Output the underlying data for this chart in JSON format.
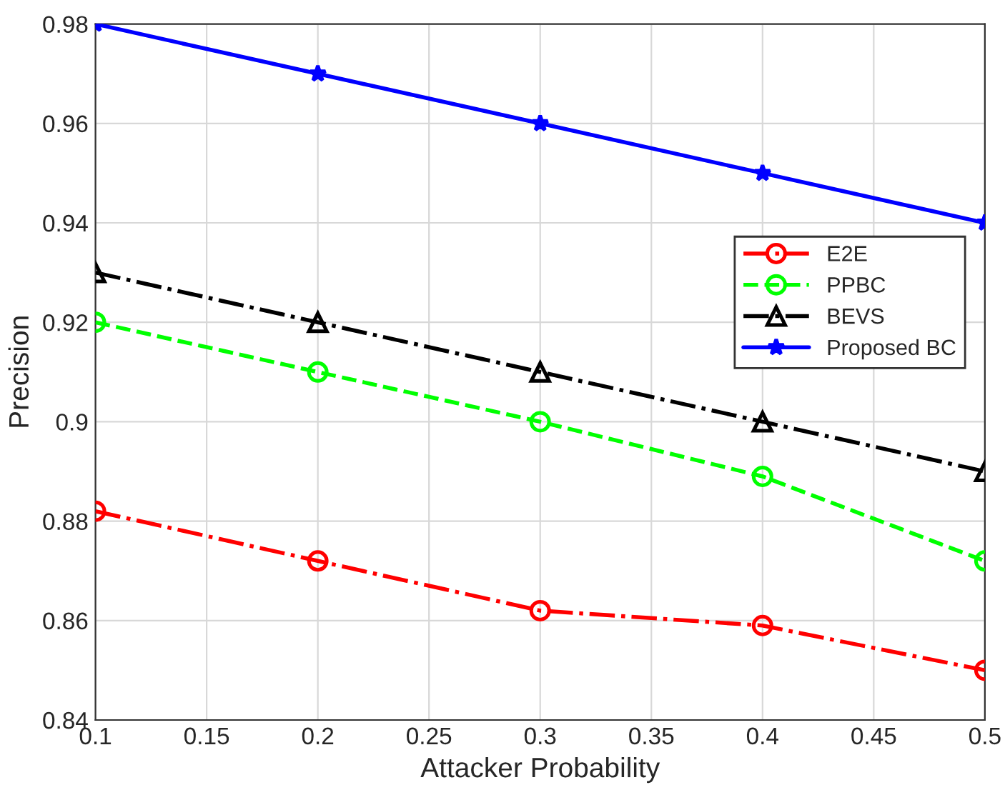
{
  "chart_data": {
    "type": "line",
    "xlabel": "Attacker Probability",
    "ylabel": "Precision",
    "x": [
      0.1,
      0.2,
      0.3,
      0.4,
      0.5
    ],
    "series": [
      {
        "name": "E2E",
        "color": "#ff0000",
        "values": [
          0.882,
          0.872,
          0.862,
          0.859,
          0.85
        ],
        "marker": "circle",
        "line_style": "dashdot"
      },
      {
        "name": "PPBC",
        "color": "#00ff00",
        "values": [
          0.92,
          0.91,
          0.9,
          0.889,
          0.872
        ],
        "marker": "circle",
        "line_style": "dashed"
      },
      {
        "name": "BEVS",
        "color": "#000000",
        "values": [
          0.93,
          0.92,
          0.91,
          0.9,
          0.89
        ],
        "marker": "triangle",
        "line_style": "dashdot"
      },
      {
        "name": "Proposed BC",
        "color": "#0000ff",
        "values": [
          0.98,
          0.97,
          0.96,
          0.95,
          0.94
        ],
        "marker": "star",
        "line_style": "solid"
      }
    ],
    "xlim": [
      0.1,
      0.5
    ],
    "xticks": [
      0.1,
      0.15,
      0.2,
      0.25,
      0.3,
      0.35,
      0.4,
      0.45,
      0.5
    ],
    "ylim": [
      0.84,
      0.98
    ],
    "yticks": [
      0.84,
      0.86,
      0.88,
      0.9,
      0.92,
      0.94,
      0.96,
      0.98
    ],
    "grid": true,
    "legend": "right"
  }
}
